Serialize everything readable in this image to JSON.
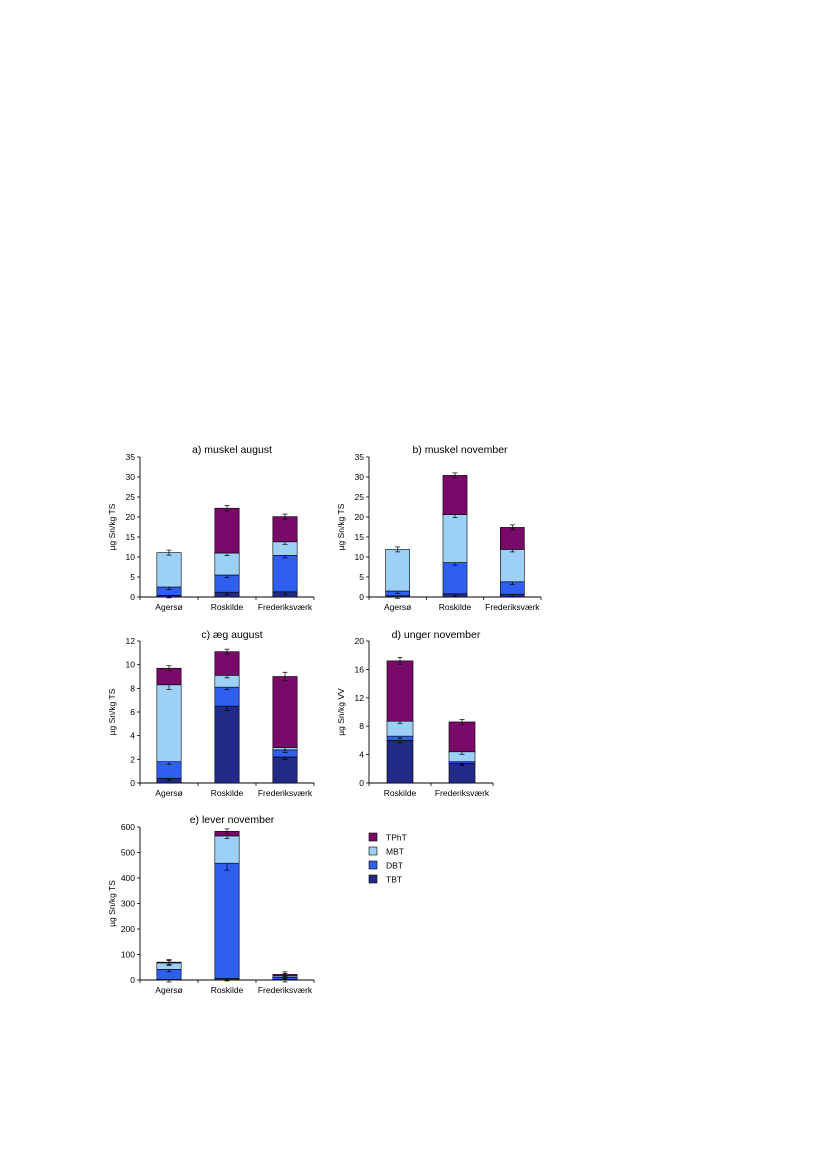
{
  "colors": {
    "TPhT": "#7a0a6a",
    "MBT": "#9cd0f5",
    "DBT": "#2e5ff0",
    "TBT": "#212a87"
  },
  "legend": {
    "items": [
      {
        "name": "TPhT",
        "color": "#7a0a6a"
      },
      {
        "name": "MBT",
        "color": "#9cd0f5"
      },
      {
        "name": "DBT",
        "color": "#2e5ff0"
      },
      {
        "name": "TBT",
        "color": "#212a87"
      }
    ]
  },
  "chart_data": [
    {
      "type": "bar",
      "stacked": true,
      "title": "a) muskel august",
      "ylabel": "µg Sn/kg TS",
      "ylim": [
        0,
        35
      ],
      "yticks": [
        "0",
        "5",
        "10",
        "15",
        "20",
        "25",
        "30",
        "35"
      ],
      "categories": [
        "Agersø",
        "Roskilde",
        "Frederiksværk"
      ],
      "series": [
        {
          "name": "TBT",
          "values": [
            0.4,
            1.2,
            1.3
          ]
        },
        {
          "name": "DBT",
          "values": [
            2.1,
            4.3,
            9.1
          ]
        },
        {
          "name": "MBT",
          "values": [
            8.6,
            5.5,
            3.4
          ]
        },
        {
          "name": "TPhT",
          "values": [
            0,
            11.2,
            6.3
          ]
        }
      ],
      "totals": [
        11.1,
        22.2,
        20.1
      ]
    },
    {
      "type": "bar",
      "stacked": true,
      "title": "b) muskel november",
      "ylabel": "µg Sn/kg TS",
      "ylim": [
        0,
        35
      ],
      "yticks": [
        "0",
        "5",
        "10",
        "15",
        "20",
        "25",
        "30",
        "35"
      ],
      "categories": [
        "Agersø",
        "Roskilde",
        "Frederiksværk"
      ],
      "series": [
        {
          "name": "TBT",
          "values": [
            0.3,
            0.8,
            0.7
          ]
        },
        {
          "name": "DBT",
          "values": [
            1.2,
            7.8,
            3.1
          ]
        },
        {
          "name": "MBT",
          "values": [
            10.4,
            12.0,
            8.1
          ]
        },
        {
          "name": "TPhT",
          "values": [
            0,
            9.8,
            5.5
          ]
        }
      ],
      "totals": [
        11.9,
        30.4,
        17.4
      ]
    },
    {
      "type": "bar",
      "stacked": true,
      "title": "c) æg august",
      "ylabel": "µg Sn/kg TS",
      "ylim": [
        0,
        12
      ],
      "yticks": [
        "0",
        "2",
        "4",
        "6",
        "8",
        "10",
        "12"
      ],
      "categories": [
        "Agersø",
        "Roskilde",
        "Frederiksværk"
      ],
      "series": [
        {
          "name": "TBT",
          "values": [
            0.4,
            6.5,
            2.2
          ]
        },
        {
          "name": "DBT",
          "values": [
            1.4,
            1.6,
            0.6
          ]
        },
        {
          "name": "MBT",
          "values": [
            6.5,
            1.0,
            0.2
          ]
        },
        {
          "name": "TPhT",
          "values": [
            1.4,
            2.0,
            6.0
          ]
        }
      ],
      "totals": [
        9.7,
        11.1,
        9.0
      ]
    },
    {
      "type": "bar",
      "stacked": true,
      "title": "d) unger november",
      "ylabel": "µg Sn/kg VV",
      "ylim": [
        0,
        20
      ],
      "yticks": [
        "0",
        "4",
        "8",
        "12",
        "16",
        "20"
      ],
      "categories": [
        "Roskilde",
        "Frederiksværk"
      ],
      "series": [
        {
          "name": "TBT",
          "values": [
            6.0,
            2.8
          ]
        },
        {
          "name": "DBT",
          "values": [
            0.6,
            0.2
          ]
        },
        {
          "name": "MBT",
          "values": [
            2.1,
            1.4
          ]
        },
        {
          "name": "TPhT",
          "values": [
            8.5,
            4.2
          ]
        }
      ],
      "totals": [
        17.2,
        8.6
      ]
    },
    {
      "type": "bar",
      "stacked": true,
      "title": "e) lever november",
      "ylabel": "µg Sn/kg TS",
      "ylim": [
        0,
        600
      ],
      "yticks": [
        "0",
        "100",
        "200",
        "300",
        "400",
        "500",
        "600"
      ],
      "categories": [
        "Agersø",
        "Roskilde",
        "Frederiksværk"
      ],
      "series": [
        {
          "name": "TBT",
          "values": [
            2,
            6,
            2
          ]
        },
        {
          "name": "DBT",
          "values": [
            40,
            452,
            8
          ]
        },
        {
          "name": "MBT",
          "values": [
            25,
            107,
            6
          ]
        },
        {
          "name": "TPhT",
          "values": [
            3,
            18,
            6
          ]
        }
      ],
      "totals": [
        70,
        583,
        22
      ]
    }
  ]
}
